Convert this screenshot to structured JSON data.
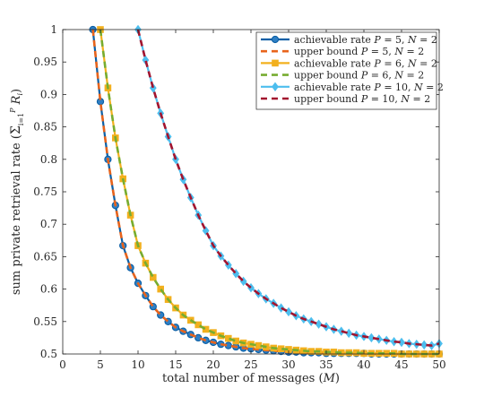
{
  "chart_data": {
    "type": "line",
    "title": "",
    "xlabel": "total number of messages (M)",
    "ylabel": "sum private retrieval rate (Σ_{i=1}^{P} R_i)",
    "xlim": [
      0,
      50
    ],
    "ylim": [
      0.5,
      1
    ],
    "x_ticks": [
      "0",
      "5",
      "10",
      "15",
      "20",
      "25",
      "30",
      "35",
      "40",
      "45",
      "50"
    ],
    "y_ticks": [
      "0.5",
      "0.55",
      "0.6",
      "0.65",
      "0.7",
      "0.75",
      "0.8",
      "0.85",
      "0.9",
      "0.95",
      "1"
    ],
    "grid": false,
    "legend_position": "top-right",
    "series": [
      {
        "name": "achievable rate P = 5, N = 2",
        "label_parts": {
          "prefix": "achievable rate ",
          "p": "5",
          "n": "2"
        },
        "style": "solid",
        "marker": "circle",
        "color": "#0b5fa5",
        "marker_fill": "#2f7fc4",
        "x": [
          4,
          5,
          6,
          7,
          8,
          9,
          10,
          11,
          12,
          13,
          14,
          15,
          16,
          17,
          18,
          19,
          20,
          21,
          22,
          23,
          24,
          25,
          26,
          27,
          28,
          29,
          30,
          31,
          32,
          33,
          34,
          35,
          36,
          37,
          38,
          39,
          40,
          41,
          42,
          43,
          44,
          45,
          46,
          47,
          48,
          49,
          50
        ],
        "y": [
          1.0,
          0.889,
          0.8,
          0.729,
          0.667,
          0.633,
          0.609,
          0.59,
          0.573,
          0.56,
          0.55,
          0.541,
          0.535,
          0.53,
          0.525,
          0.521,
          0.518,
          0.515,
          0.513,
          0.511,
          0.509,
          0.508,
          0.507,
          0.506,
          0.505,
          0.504,
          0.503,
          0.503,
          0.502,
          0.502,
          0.502,
          0.501,
          0.501,
          0.501,
          0.501,
          0.501,
          0.501,
          0.5,
          0.5,
          0.5,
          0.5,
          0.5,
          0.5,
          0.5,
          0.5,
          0.5,
          0.5
        ]
      },
      {
        "name": "upper bound P = 5, N = 2",
        "label_parts": {
          "prefix": "upper bound ",
          "p": "5",
          "n": "2"
        },
        "style": "dashed",
        "marker": "none",
        "color": "#e8641c",
        "x": [
          4,
          5,
          6,
          7,
          8,
          9,
          10,
          11,
          12,
          13,
          14,
          15,
          16,
          17,
          18,
          19,
          20,
          21,
          22,
          23,
          24,
          25,
          26,
          27,
          28,
          29,
          30,
          31,
          32,
          33,
          34,
          35,
          36,
          37,
          38,
          39,
          40,
          41,
          42,
          43,
          44,
          45,
          46,
          47,
          48,
          49,
          50
        ],
        "y": [
          1.0,
          0.889,
          0.8,
          0.729,
          0.667,
          0.633,
          0.609,
          0.59,
          0.573,
          0.56,
          0.55,
          0.541,
          0.535,
          0.53,
          0.525,
          0.521,
          0.518,
          0.515,
          0.513,
          0.511,
          0.509,
          0.508,
          0.507,
          0.506,
          0.505,
          0.504,
          0.503,
          0.503,
          0.502,
          0.502,
          0.502,
          0.501,
          0.501,
          0.501,
          0.501,
          0.501,
          0.501,
          0.5,
          0.5,
          0.5,
          0.5,
          0.5,
          0.5,
          0.5,
          0.5,
          0.5,
          0.5
        ]
      },
      {
        "name": "achievable rate P = 6, N = 2",
        "label_parts": {
          "prefix": "achievable rate ",
          "p": "6",
          "n": "2"
        },
        "style": "solid",
        "marker": "square",
        "color": "#f2b01e",
        "marker_fill": "#f2b01e",
        "x": [
          5,
          6,
          7,
          8,
          9,
          10,
          11,
          12,
          13,
          14,
          15,
          16,
          17,
          18,
          19,
          20,
          21,
          22,
          23,
          24,
          25,
          26,
          27,
          28,
          29,
          30,
          31,
          32,
          33,
          34,
          35,
          36,
          37,
          38,
          39,
          40,
          41,
          42,
          43,
          44,
          45,
          46,
          47,
          48,
          49,
          50
        ],
        "y": [
          1.0,
          0.91,
          0.833,
          0.77,
          0.714,
          0.667,
          0.64,
          0.618,
          0.6,
          0.584,
          0.571,
          0.56,
          0.552,
          0.545,
          0.538,
          0.533,
          0.528,
          0.524,
          0.52,
          0.517,
          0.515,
          0.513,
          0.511,
          0.509,
          0.508,
          0.507,
          0.506,
          0.505,
          0.504,
          0.504,
          0.503,
          0.503,
          0.502,
          0.502,
          0.502,
          0.501,
          0.501,
          0.501,
          0.501,
          0.501,
          0.5,
          0.5,
          0.5,
          0.5,
          0.5,
          0.5
        ]
      },
      {
        "name": "upper bound P = 6, N = 2",
        "label_parts": {
          "prefix": "upper bound ",
          "p": "6",
          "n": "2"
        },
        "style": "dashed",
        "marker": "none",
        "color": "#77ac30",
        "x": [
          5,
          6,
          7,
          8,
          9,
          10,
          11,
          12,
          13,
          14,
          15,
          16,
          17,
          18,
          19,
          20,
          21,
          22,
          23,
          24,
          25,
          26,
          27,
          28,
          29,
          30,
          31,
          32,
          33,
          34,
          35,
          36,
          37,
          38,
          39,
          40,
          41,
          42,
          43,
          44,
          45,
          46,
          47,
          48,
          49,
          50
        ],
        "y": [
          1.0,
          0.91,
          0.833,
          0.77,
          0.714,
          0.667,
          0.64,
          0.618,
          0.6,
          0.584,
          0.571,
          0.56,
          0.552,
          0.545,
          0.538,
          0.533,
          0.528,
          0.524,
          0.52,
          0.517,
          0.515,
          0.513,
          0.511,
          0.509,
          0.508,
          0.507,
          0.506,
          0.505,
          0.504,
          0.504,
          0.503,
          0.503,
          0.502,
          0.502,
          0.502,
          0.501,
          0.501,
          0.501,
          0.501,
          0.501,
          0.5,
          0.5,
          0.5,
          0.5,
          0.5,
          0.5
        ]
      },
      {
        "name": "achievable rate P = 10, N = 2",
        "label_parts": {
          "prefix": "achievable rate ",
          "p": "10",
          "n": "2"
        },
        "style": "solid",
        "marker": "diamond",
        "color": "#4dbeee",
        "marker_fill": "#4dbeee",
        "x": [
          10,
          11,
          12,
          13,
          14,
          15,
          16,
          17,
          18,
          19,
          20,
          21,
          22,
          23,
          24,
          25,
          26,
          27,
          28,
          29,
          30,
          31,
          32,
          33,
          34,
          35,
          36,
          37,
          38,
          39,
          40,
          41,
          42,
          43,
          44,
          45,
          46,
          47,
          48,
          49,
          50
        ],
        "y": [
          1.0,
          0.953,
          0.91,
          0.871,
          0.835,
          0.8,
          0.769,
          0.741,
          0.714,
          0.69,
          0.667,
          0.651,
          0.637,
          0.624,
          0.612,
          0.602,
          0.593,
          0.585,
          0.578,
          0.571,
          0.565,
          0.559,
          0.554,
          0.55,
          0.546,
          0.542,
          0.538,
          0.535,
          0.532,
          0.529,
          0.527,
          0.525,
          0.523,
          0.521,
          0.519,
          0.518,
          0.516,
          0.515,
          0.514,
          0.513,
          0.516
        ]
      },
      {
        "name": "upper bound P = 10, N = 2",
        "label_parts": {
          "prefix": "upper bound ",
          "p": "10",
          "n": "2"
        },
        "style": "dashed",
        "marker": "none",
        "color": "#a2142f",
        "x": [
          10,
          11,
          12,
          13,
          14,
          15,
          16,
          17,
          18,
          19,
          20,
          21,
          22,
          23,
          24,
          25,
          26,
          27,
          28,
          29,
          30,
          31,
          32,
          33,
          34,
          35,
          36,
          37,
          38,
          39,
          40,
          41,
          42,
          43,
          44,
          45,
          46,
          47,
          48,
          49,
          50
        ],
        "y": [
          1.0,
          0.953,
          0.91,
          0.871,
          0.835,
          0.8,
          0.769,
          0.741,
          0.714,
          0.69,
          0.667,
          0.651,
          0.637,
          0.624,
          0.612,
          0.602,
          0.593,
          0.585,
          0.578,
          0.571,
          0.565,
          0.559,
          0.554,
          0.55,
          0.546,
          0.542,
          0.538,
          0.535,
          0.532,
          0.529,
          0.527,
          0.525,
          0.523,
          0.521,
          0.519,
          0.518,
          0.516,
          0.515,
          0.514,
          0.513,
          0.516
        ]
      }
    ]
  }
}
